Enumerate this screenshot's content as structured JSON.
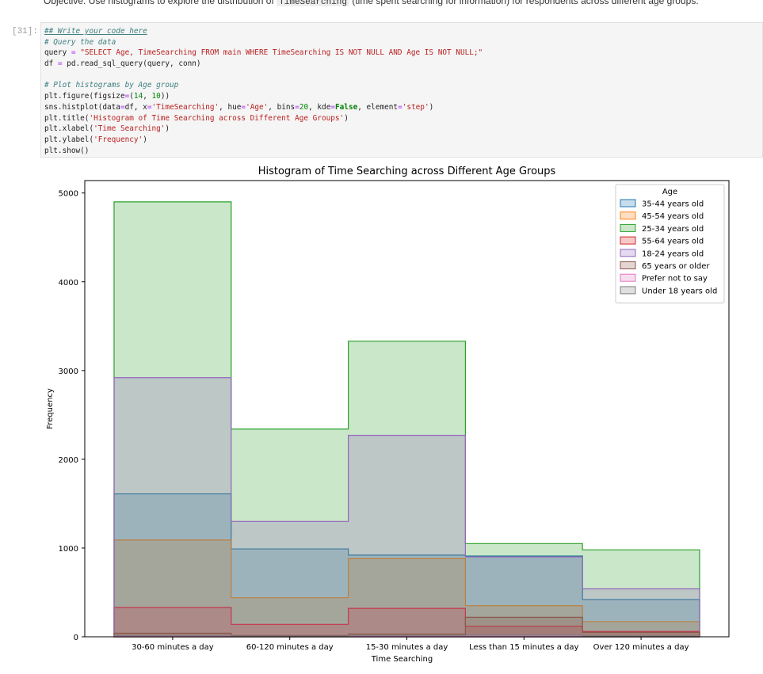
{
  "objective": {
    "prefix": "Objective: Use histograms to explore the distribution of",
    "code": "TimeSearching",
    "suffix": "(time spent searching for information) for respondents across different age groups."
  },
  "cell": {
    "prompt": "[31]:",
    "code_lines": [
      "## Write your code here",
      "# Query the data",
      "query = \"SELECT Age, TimeSearching FROM main WHERE TimeSearching IS NOT NULL AND Age IS NOT NULL;\"",
      "df = pd.read_sql_query(query, conn)",
      "",
      "# Plot histograms by Age group",
      "plt.figure(figsize=(14, 10))",
      "sns.histplot(data=df, x='TimeSearching', hue='Age', bins=20, kde=False, element='step')",
      "plt.title('Histogram of Time Searching across Different Age Groups')",
      "plt.xlabel('Time Searching')",
      "plt.ylabel('Frequency')",
      "plt.show()"
    ]
  },
  "chart_data": {
    "type": "bar",
    "title": "Histogram of Time Searching across Different Age Groups",
    "xlabel": "Time Searching",
    "ylabel": "Frequency",
    "ylim": [
      0,
      5140
    ],
    "yticks": [
      0,
      1000,
      2000,
      3000,
      4000,
      5000
    ],
    "categories": [
      "30-60 minutes a day",
      "60-120 minutes a day",
      "15-30 minutes a day",
      "Less than 15 minutes a day",
      "Over 120 minutes a day"
    ],
    "legend_title": "Age",
    "legend_position": "top-right",
    "grid": false,
    "series": [
      {
        "name": "35-44 years old",
        "color": "#1f77b4",
        "values": [
          1610,
          990,
          920,
          910,
          420
        ]
      },
      {
        "name": "45-54 years old",
        "color": "#ff7f0e",
        "values": [
          1090,
          440,
          880,
          350,
          170
        ]
      },
      {
        "name": "25-34 years old",
        "color": "#2ca02c",
        "values": [
          4900,
          2340,
          3330,
          1050,
          980
        ]
      },
      {
        "name": "55-64 years old",
        "color": "#d62728",
        "values": [
          330,
          140,
          320,
          120,
          60
        ]
      },
      {
        "name": "18-24 years old",
        "color": "#9467bd",
        "values": [
          2920,
          1300,
          2270,
          900,
          540
        ]
      },
      {
        "name": "65 years or older",
        "color": "#8c564b",
        "values": [
          40,
          15,
          30,
          220,
          50
        ]
      },
      {
        "name": "Prefer not to say",
        "color": "#e377c2",
        "values": [
          10,
          5,
          10,
          10,
          5
        ]
      },
      {
        "name": "Under 18 years old",
        "color": "#7f7f7f",
        "values": [
          15,
          8,
          15,
          20,
          10
        ]
      }
    ]
  }
}
